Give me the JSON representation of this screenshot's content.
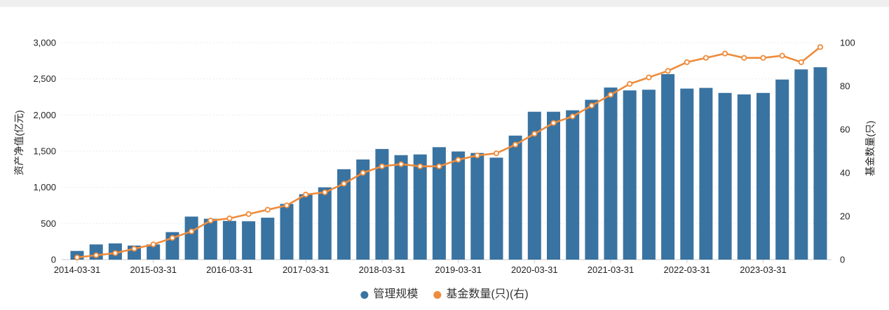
{
  "page": {
    "background": "#ffffff",
    "top_strip_color": "#efefef"
  },
  "chart_data": {
    "type": "bar",
    "combo": "bar+line, dual y-axis",
    "categories": [
      "2014-03-31",
      "2014-06-30",
      "2014-09-30",
      "2014-12-31",
      "2015-03-31",
      "2015-06-30",
      "2015-09-30",
      "2015-12-31",
      "2016-03-31",
      "2016-06-30",
      "2016-09-30",
      "2016-12-31",
      "2017-03-31",
      "2017-06-30",
      "2017-09-30",
      "2017-12-31",
      "2018-03-31",
      "2018-06-30",
      "2018-09-30",
      "2018-12-31",
      "2019-03-31",
      "2019-06-30",
      "2019-09-30",
      "2019-12-31",
      "2020-03-31",
      "2020-06-30",
      "2020-09-30",
      "2020-12-31",
      "2021-03-31",
      "2021-06-30",
      "2021-09-30",
      "2021-12-31",
      "2022-03-31",
      "2022-06-30",
      "2022-09-30",
      "2022-12-31",
      "2023-03-31",
      "2023-06-30",
      "2023-09-30",
      "2023-12-31"
    ],
    "series": [
      {
        "name": "管理规模",
        "type": "bar",
        "axis": "left",
        "color": "#3973a1",
        "values": [
          120,
          210,
          225,
          195,
          210,
          380,
          595,
          565,
          535,
          530,
          580,
          770,
          905,
          1000,
          1250,
          1385,
          1530,
          1445,
          1455,
          1555,
          1495,
          1475,
          1410,
          1715,
          2045,
          2045,
          2065,
          2210,
          2380,
          2340,
          2350,
          2565,
          2365,
          2375,
          2305,
          2285,
          2305,
          2490,
          2630,
          2660
        ]
      },
      {
        "name": "基金数量(只)(右)",
        "type": "line",
        "axis": "right",
        "color": "#ee8c3c",
        "marker": "open-circle",
        "values": [
          1,
          2,
          3,
          5,
          7,
          10,
          13,
          18,
          19,
          21,
          23,
          25,
          30,
          31,
          35,
          40,
          43,
          44,
          43,
          43,
          46,
          48,
          49,
          53,
          58,
          63,
          66,
          71,
          76,
          81,
          84,
          87,
          91,
          93,
          95,
          93,
          93,
          94,
          91,
          98
        ]
      }
    ],
    "x_axis": {
      "tick_labels": [
        "2014-03-31",
        "2015-03-31",
        "2016-03-31",
        "2017-03-31",
        "2018-03-31",
        "2019-03-31",
        "2020-03-31",
        "2021-03-31",
        "2022-03-31",
        "2023-03-31"
      ],
      "tick_every": 4
    },
    "left_axis": {
      "title": "资产净值(亿元)",
      "min": 0,
      "max": 3000,
      "tick_step": 500,
      "tick_labels": [
        "0",
        "500",
        "1,000",
        "1,500",
        "2,000",
        "2,500",
        "3,000"
      ]
    },
    "right_axis": {
      "title": "基金数量(只)",
      "min": 0,
      "max": 100,
      "tick_step": 20,
      "tick_labels": [
        "0",
        "20",
        "40",
        "60",
        "80",
        "100"
      ]
    },
    "grid": {
      "horizontal": true,
      "style": "dotted",
      "color": "#e2e4ef"
    },
    "axis_line_color": "#cccccc",
    "tick_text_color": "#222222",
    "legend": {
      "position": "bottom-center",
      "items": [
        {
          "label": "管理规模",
          "color": "#3973a1"
        },
        {
          "label": "基金数量(只)(右)",
          "color": "#ee8c3c"
        }
      ]
    }
  }
}
